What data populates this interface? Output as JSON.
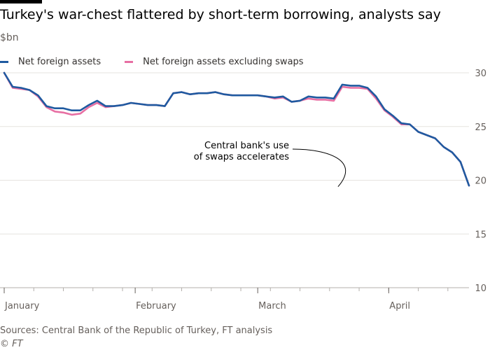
{
  "title": "Turkey's war-chest flattered by short-term borrowing, analysts say",
  "subtitle": "$bn",
  "source": "Sources: Central Bank of the Republic of Turkey, FT analysis",
  "credit": "© FT",
  "colors": {
    "series1": "#1f5aa0",
    "series2": "#e76fa3",
    "grid": "#e6e3df",
    "axis": "#66605c",
    "annotation": "#000000"
  },
  "chart_data": {
    "type": "line",
    "ylim": [
      10,
      30
    ],
    "yticks": [
      10,
      15,
      20,
      25,
      30
    ],
    "y_axis_side": "right",
    "grid": "horizontal",
    "legend": "top-left",
    "xlim": [
      "2020-01-01",
      "2020-04-20"
    ],
    "xticks": [
      {
        "date": "2020-01-01",
        "label": "January"
      },
      {
        "date": "2020-02-01",
        "label": "February"
      },
      {
        "date": "2020-03-01",
        "label": "March"
      },
      {
        "date": "2020-04-01",
        "label": "April"
      }
    ],
    "annotation": {
      "text_lines": [
        "Central bank's use",
        "of swaps accelerates"
      ],
      "target_date": "2020-03-20",
      "target_value": 19.4
    },
    "series": [
      {
        "name": "Net foreign assets",
        "points": [
          [
            "2020-01-01",
            30.0
          ],
          [
            "2020-01-03",
            28.7
          ],
          [
            "2020-01-05",
            28.6
          ],
          [
            "2020-01-07",
            28.4
          ],
          [
            "2020-01-09",
            27.9
          ],
          [
            "2020-01-11",
            26.9
          ],
          [
            "2020-01-13",
            26.7
          ],
          [
            "2020-01-15",
            26.7
          ],
          [
            "2020-01-17",
            26.5
          ],
          [
            "2020-01-19",
            26.5
          ],
          [
            "2020-01-21",
            27.0
          ],
          [
            "2020-01-23",
            27.4
          ],
          [
            "2020-01-25",
            26.9
          ],
          [
            "2020-01-27",
            26.9
          ],
          [
            "2020-01-29",
            27.0
          ],
          [
            "2020-01-31",
            27.2
          ],
          [
            "2020-02-02",
            27.1
          ],
          [
            "2020-02-04",
            27.0
          ],
          [
            "2020-02-06",
            27.0
          ],
          [
            "2020-02-08",
            26.9
          ],
          [
            "2020-02-10",
            28.1
          ],
          [
            "2020-02-12",
            28.2
          ],
          [
            "2020-02-14",
            28.0
          ],
          [
            "2020-02-16",
            28.1
          ],
          [
            "2020-02-18",
            28.1
          ],
          [
            "2020-02-20",
            28.2
          ],
          [
            "2020-02-22",
            28.0
          ],
          [
            "2020-02-24",
            27.9
          ],
          [
            "2020-02-26",
            27.9
          ],
          [
            "2020-02-28",
            27.9
          ],
          [
            "2020-03-01",
            27.9
          ],
          [
            "2020-03-03",
            27.8
          ],
          [
            "2020-03-05",
            27.7
          ],
          [
            "2020-03-07",
            27.8
          ],
          [
            "2020-03-09",
            27.3
          ],
          [
            "2020-03-11",
            27.4
          ],
          [
            "2020-03-13",
            27.8
          ],
          [
            "2020-03-15",
            27.7
          ],
          [
            "2020-03-17",
            27.7
          ],
          [
            "2020-03-19",
            27.6
          ],
          [
            "2020-03-21",
            28.9
          ],
          [
            "2020-03-23",
            28.8
          ],
          [
            "2020-03-25",
            28.8
          ],
          [
            "2020-03-27",
            28.6
          ],
          [
            "2020-03-29",
            27.8
          ],
          [
            "2020-03-31",
            26.6
          ],
          [
            "2020-04-02",
            26.0
          ],
          [
            "2020-04-04",
            25.3
          ],
          [
            "2020-04-06",
            25.2
          ],
          [
            "2020-04-08",
            24.5
          ],
          [
            "2020-04-10",
            24.2
          ],
          [
            "2020-04-12",
            23.9
          ],
          [
            "2020-04-14",
            23.1
          ],
          [
            "2020-04-16",
            22.6
          ],
          [
            "2020-04-18",
            21.7
          ],
          [
            "2020-04-20",
            19.5
          ]
        ]
      },
      {
        "name": "Net foreign assets excluding swaps",
        "points": [
          [
            "2020-01-01",
            30.0
          ],
          [
            "2020-01-03",
            28.6
          ],
          [
            "2020-01-05",
            28.5
          ],
          [
            "2020-01-07",
            28.4
          ],
          [
            "2020-01-09",
            27.8
          ],
          [
            "2020-01-11",
            26.8
          ],
          [
            "2020-01-13",
            26.4
          ],
          [
            "2020-01-15",
            26.3
          ],
          [
            "2020-01-17",
            26.1
          ],
          [
            "2020-01-19",
            26.2
          ],
          [
            "2020-01-21",
            26.8
          ],
          [
            "2020-01-23",
            27.2
          ],
          [
            "2020-01-25",
            26.8
          ],
          [
            "2020-01-27",
            26.9
          ],
          [
            "2020-01-29",
            27.0
          ],
          [
            "2020-01-31",
            27.2
          ],
          [
            "2020-02-02",
            27.1
          ],
          [
            "2020-02-04",
            27.0
          ],
          [
            "2020-02-06",
            27.0
          ],
          [
            "2020-02-08",
            26.9
          ],
          [
            "2020-02-10",
            28.1
          ],
          [
            "2020-02-12",
            28.2
          ],
          [
            "2020-02-14",
            28.0
          ],
          [
            "2020-02-16",
            28.1
          ],
          [
            "2020-02-18",
            28.1
          ],
          [
            "2020-02-20",
            28.2
          ],
          [
            "2020-02-22",
            28.0
          ],
          [
            "2020-02-24",
            27.9
          ],
          [
            "2020-02-26",
            27.9
          ],
          [
            "2020-02-28",
            27.9
          ],
          [
            "2020-03-01",
            27.9
          ],
          [
            "2020-03-03",
            27.8
          ],
          [
            "2020-03-05",
            27.6
          ],
          [
            "2020-03-07",
            27.7
          ],
          [
            "2020-03-09",
            27.3
          ],
          [
            "2020-03-11",
            27.4
          ],
          [
            "2020-03-13",
            27.6
          ],
          [
            "2020-03-15",
            27.5
          ],
          [
            "2020-03-17",
            27.5
          ],
          [
            "2020-03-19",
            27.4
          ],
          [
            "2020-03-21",
            28.7
          ],
          [
            "2020-03-23",
            28.6
          ],
          [
            "2020-03-25",
            28.6
          ],
          [
            "2020-03-27",
            28.5
          ],
          [
            "2020-03-29",
            27.6
          ],
          [
            "2020-03-31",
            26.5
          ],
          [
            "2020-04-02",
            25.9
          ],
          [
            "2020-04-04",
            25.2
          ],
          [
            "2020-04-06",
            25.2
          ],
          [
            "2020-04-08",
            24.5
          ],
          [
            "2020-04-10",
            24.2
          ],
          [
            "2020-04-12",
            23.9
          ],
          [
            "2020-04-14",
            23.1
          ],
          [
            "2020-04-16",
            22.6
          ],
          [
            "2020-04-18",
            21.7
          ],
          [
            "2020-04-20",
            19.5
          ]
        ]
      }
    ]
  }
}
